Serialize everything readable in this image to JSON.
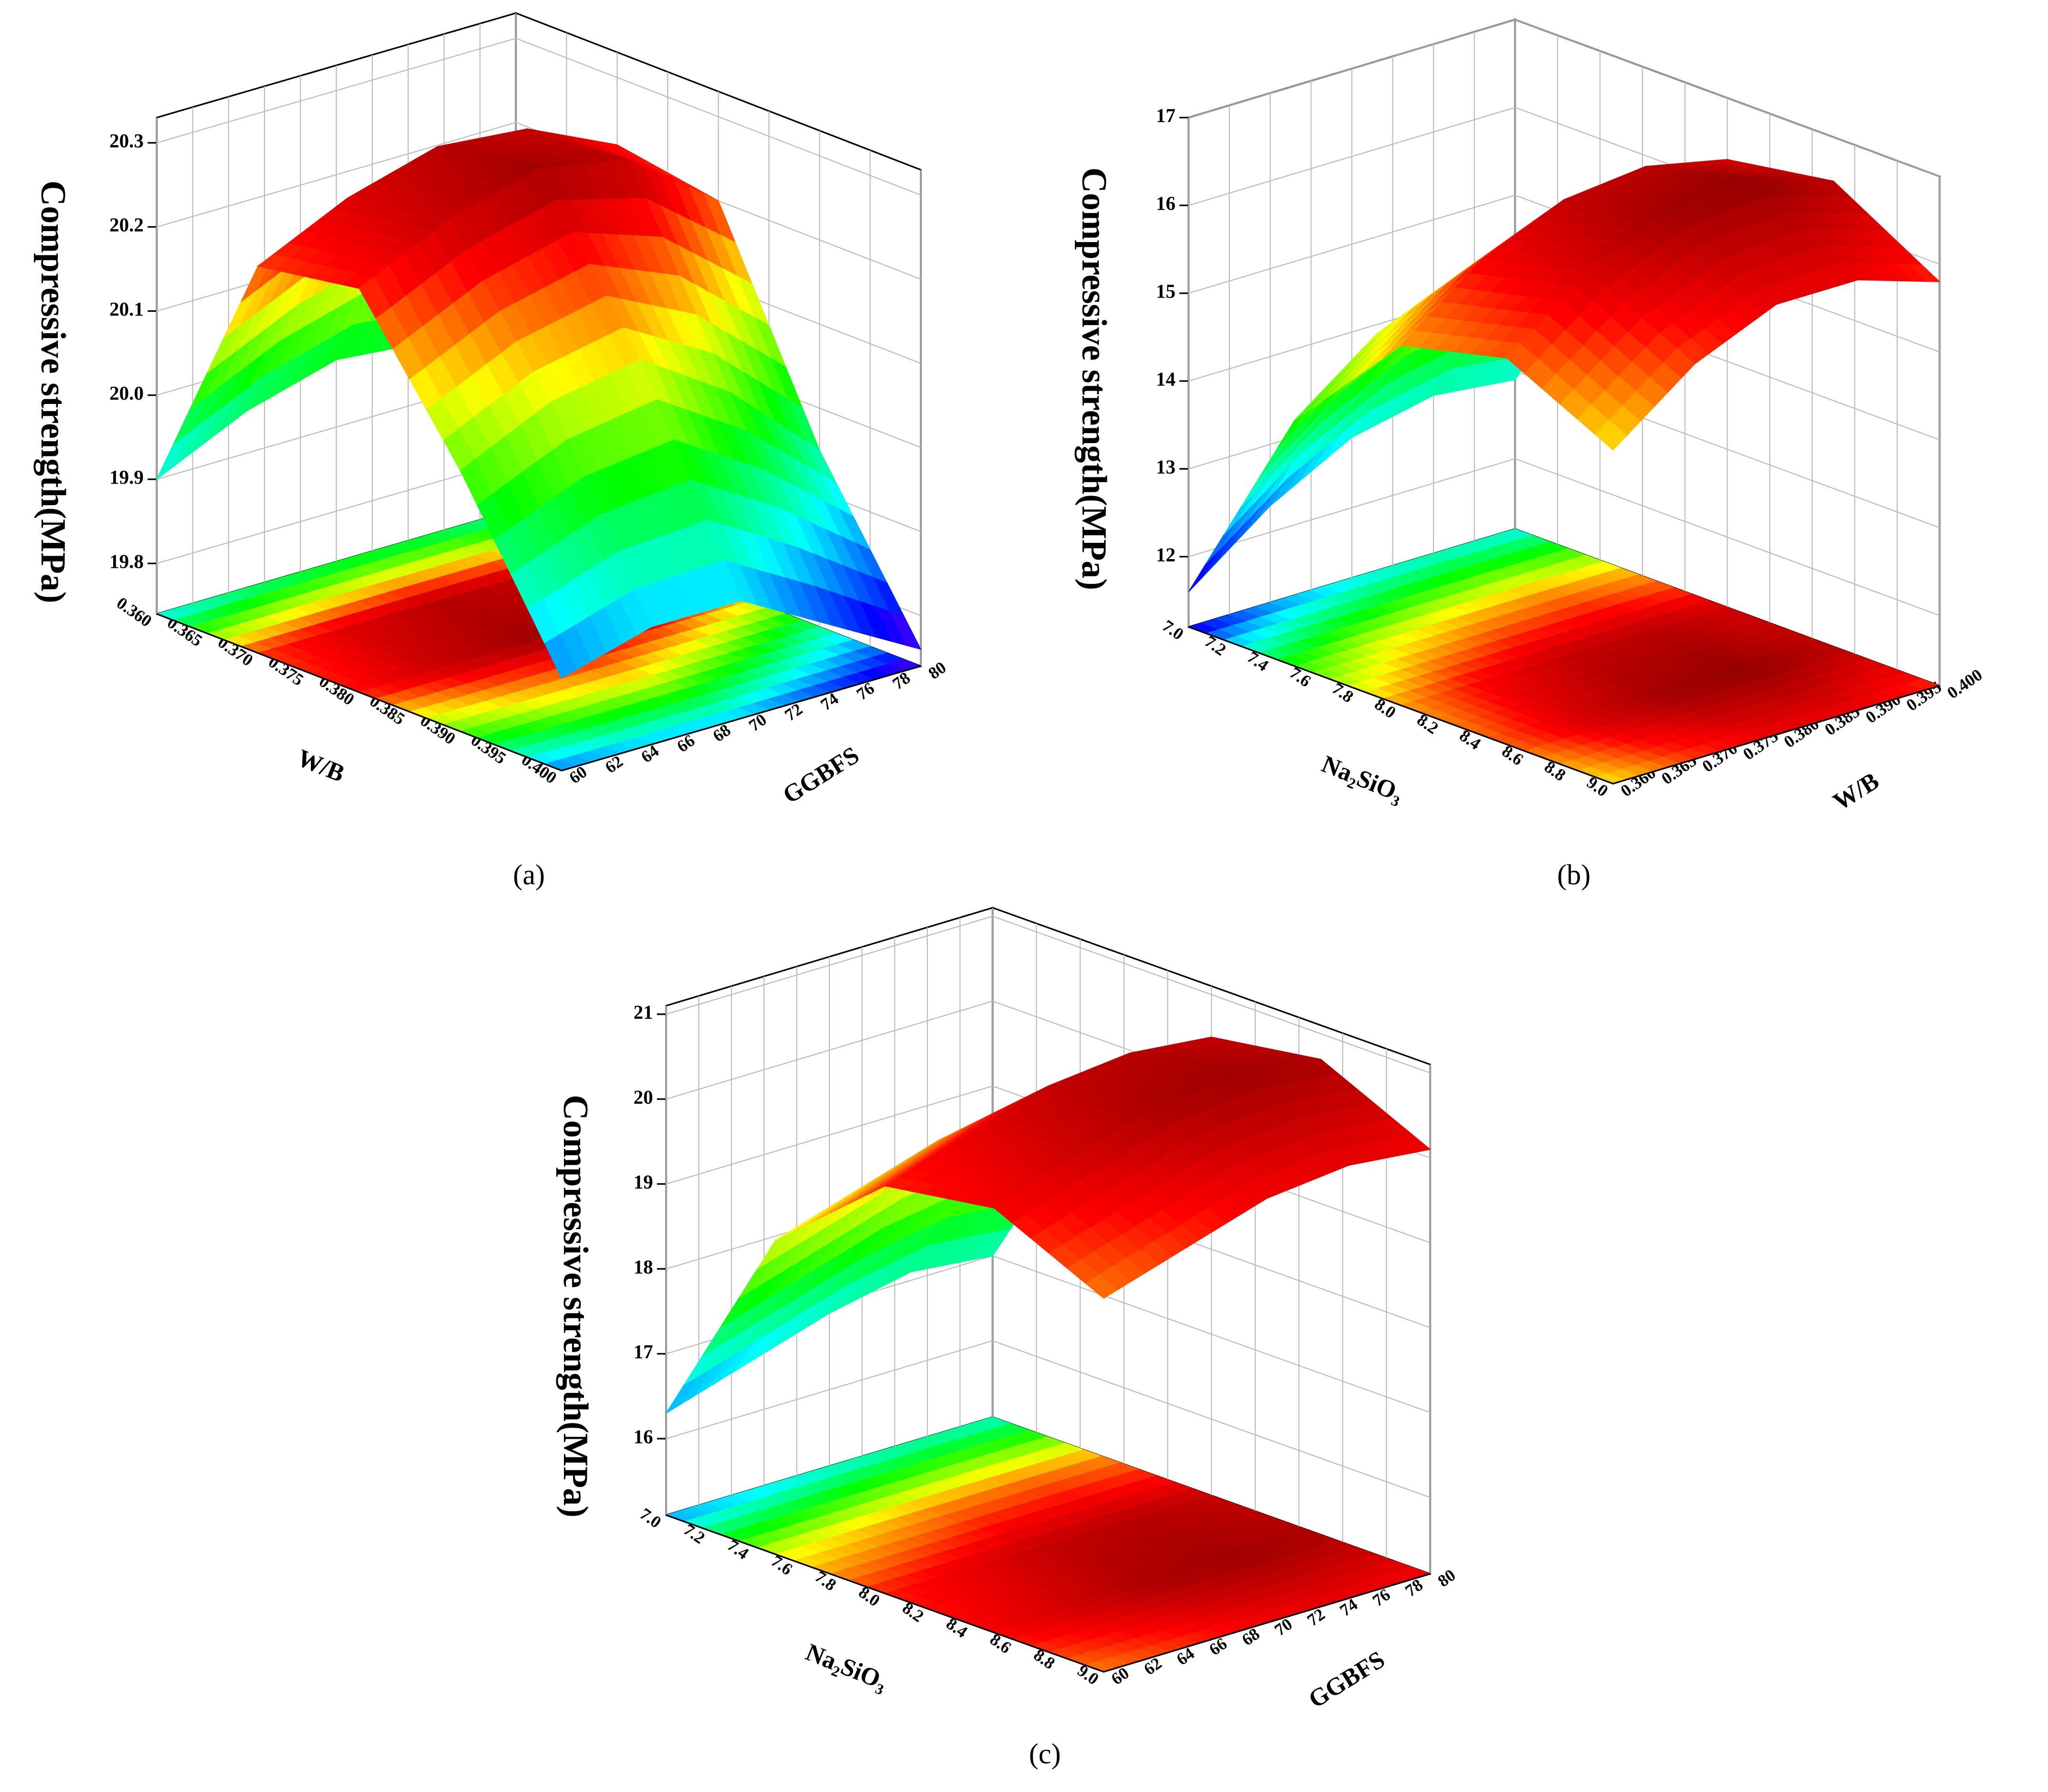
{
  "chart_data": [
    {
      "type": "surface3d",
      "label": "(a)",
      "x_label": "W/B",
      "y_label": "GGBFS",
      "z_label": "Compressive strength(MPa)",
      "x": [
        0.36,
        0.37,
        0.38,
        0.39,
        0.4
      ],
      "y": [
        60,
        65,
        70,
        75,
        80
      ],
      "z": [
        [
          19.9,
          19.95,
          19.98,
          19.97,
          19.93
        ],
        [
          20.2,
          20.25,
          20.28,
          20.27,
          20.22
        ],
        [
          20.22,
          20.27,
          20.3,
          20.28,
          20.2
        ],
        [
          20.05,
          20.1,
          20.12,
          20.05,
          19.95
        ],
        [
          19.85,
          19.88,
          19.88,
          19.82,
          19.76
        ]
      ],
      "xlim": [
        0.36,
        0.4
      ],
      "ylim": [
        60,
        80
      ],
      "zlim": [
        19.74,
        20.33
      ],
      "xticks": [
        {
          "value": 0.36,
          "label": "0.360"
        },
        0.365,
        {
          "value": 0.37,
          "label": "0.370"
        },
        0.375,
        {
          "value": 0.38,
          "label": "0.380"
        },
        0.385,
        {
          "value": 0.39,
          "label": "0.390"
        },
        0.395,
        {
          "value": 0.4,
          "label": "0.400"
        }
      ],
      "yticks": [
        60,
        62,
        64,
        66,
        68,
        70,
        72,
        74,
        76,
        78,
        80
      ],
      "zticks": [
        19.8,
        19.9,
        {
          "value": 20.0,
          "label": "20.0"
        },
        20.1,
        20.2,
        20.3
      ]
    },
    {
      "type": "surface3d",
      "label": "(b)",
      "x_label": "Na₂SiO₃",
      "y_label": "W/B",
      "z_label": "Compressive strength(MPa)",
      "x": [
        7.0,
        7.5,
        8.0,
        8.5,
        9.0
      ],
      "y": [
        0.36,
        0.37,
        0.38,
        0.39,
        0.4
      ],
      "z": [
        [
          11.6,
          12.3,
          12.8,
          13.0,
          12.9
        ],
        [
          14.0,
          14.7,
          15.1,
          15.3,
          15.1
        ],
        [
          15.3,
          16.0,
          16.4,
          16.5,
          16.3
        ],
        [
          15.6,
          16.3,
          16.7,
          16.8,
          16.5
        ],
        [
          15.0,
          15.7,
          16.1,
          16.1,
          15.8
        ]
      ],
      "xlim": [
        7,
        9
      ],
      "ylim": [
        0.36,
        0.4
      ],
      "zlim": [
        11.2,
        17.0
      ],
      "xticks": [
        {
          "value": 7,
          "label": "7.0"
        },
        7.2,
        7.4,
        7.6,
        7.8,
        {
          "value": 8,
          "label": "8.0"
        },
        8.2,
        8.4,
        8.6,
        8.8,
        {
          "value": 9,
          "label": "9.0"
        }
      ],
      "yticks": [
        {
          "value": 0.36,
          "label": "0.360"
        },
        0.365,
        {
          "value": 0.37,
          "label": "0.370"
        },
        0.375,
        {
          "value": 0.38,
          "label": "0.380"
        },
        0.385,
        {
          "value": 0.39,
          "label": "0.390"
        },
        0.395,
        {
          "value": 0.4,
          "label": "0.400"
        }
      ],
      "zticks": [
        12,
        13,
        14,
        15,
        16,
        17
      ]
    },
    {
      "type": "surface3d",
      "label": "(c)",
      "x_label": "Na₂SiO₃",
      "y_label": "GGBFS",
      "z_label": "Compressive strength(MPa)",
      "x": [
        7.0,
        7.5,
        8.0,
        8.5,
        9.0
      ],
      "y": [
        60,
        65,
        70,
        75,
        80
      ],
      "z": [
        [
          16.3,
          16.6,
          16.9,
          17.1,
          17.0
        ],
        [
          18.8,
          19.1,
          19.4,
          19.5,
          19.4
        ],
        [
          19.9,
          20.2,
          20.5,
          20.6,
          20.5
        ],
        [
          20.1,
          20.4,
          20.7,
          20.8,
          20.7
        ],
        [
          19.5,
          19.8,
          20.1,
          20.2,
          20.1
        ]
      ],
      "xlim": [
        7,
        9
      ],
      "ylim": [
        60,
        80
      ],
      "zlim": [
        15.1,
        21.1
      ],
      "xticks": [
        {
          "value": 7,
          "label": "7.0"
        },
        7.2,
        7.4,
        7.6,
        7.8,
        {
          "value": 8,
          "label": "8.0"
        },
        8.2,
        8.4,
        8.6,
        8.8,
        {
          "value": 9,
          "label": "9.0"
        }
      ],
      "yticks": [
        60,
        62,
        64,
        66,
        68,
        70,
        72,
        74,
        76,
        78,
        80
      ],
      "zticks": [
        16,
        17,
        18,
        19,
        20,
        21
      ]
    }
  ]
}
